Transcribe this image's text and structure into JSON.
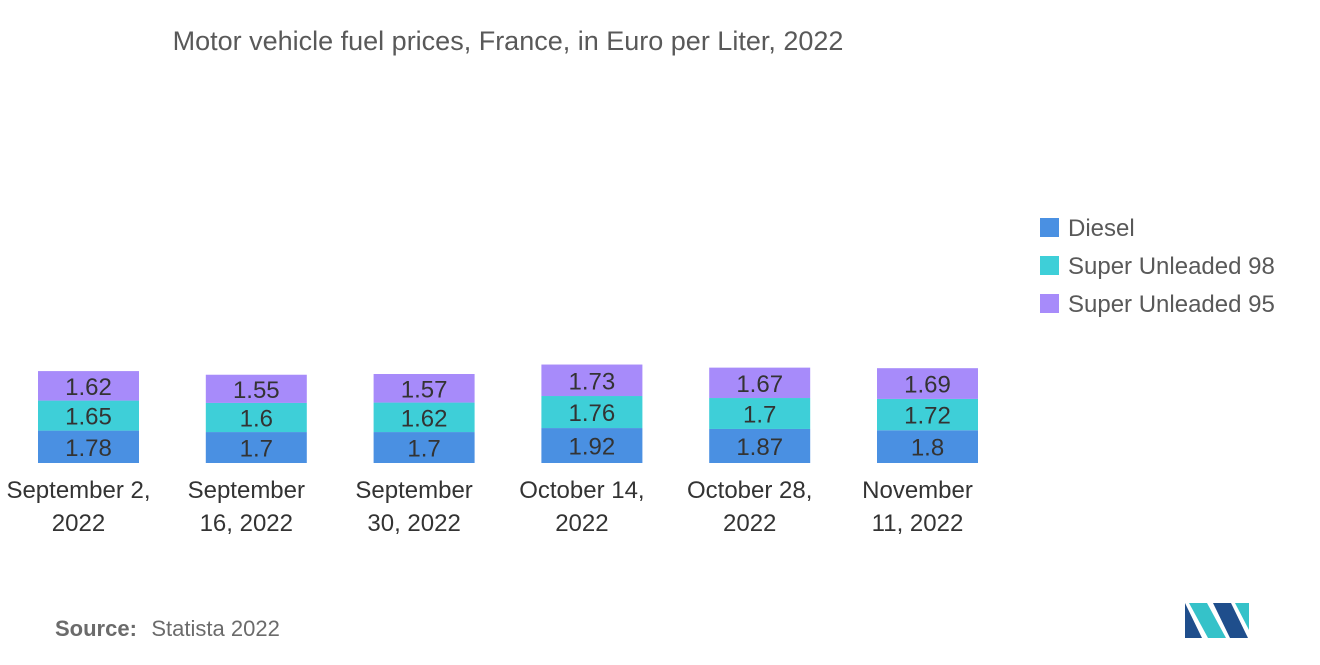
{
  "chart_data": {
    "type": "bar",
    "stacked": true,
    "title": "Motor vehicle fuel prices, France, in Euro per Liter, 2022",
    "categories": [
      [
        "September 2,",
        "2022"
      ],
      [
        "September",
        "16, 2022"
      ],
      [
        "September",
        "30, 2022"
      ],
      [
        "October 14,",
        "2022"
      ],
      [
        "October 28,",
        "2022"
      ],
      [
        "November",
        "11, 2022"
      ]
    ],
    "series": [
      {
        "name": "Diesel",
        "color": "#4a90e2",
        "values": [
          1.78,
          1.7,
          1.7,
          1.92,
          1.87,
          1.8
        ],
        "labels": [
          "1.78",
          "1.7",
          "1.7",
          "1.92",
          "1.87",
          "1.8"
        ]
      },
      {
        "name": "Super Unleaded 98",
        "color": "#3ecfd8",
        "values": [
          1.65,
          1.6,
          1.62,
          1.76,
          1.7,
          1.72
        ],
        "labels": [
          "1.65",
          "1.6",
          "1.62",
          "1.76",
          "1.7",
          "1.72"
        ]
      },
      {
        "name": "Super Unleaded 95",
        "color": "#a78bfa",
        "values": [
          1.62,
          1.55,
          1.57,
          1.73,
          1.67,
          1.69
        ],
        "labels": [
          "1.62",
          "1.55",
          "1.57",
          "1.73",
          "1.67",
          "1.69"
        ]
      }
    ],
    "legend": "right"
  },
  "source": {
    "label": "Source:",
    "text": "Statista 2022"
  },
  "logo": {
    "icon": "mordor-intelligence-logo-icon",
    "colors": [
      "#1f4e8c",
      "#35c2c9"
    ]
  }
}
